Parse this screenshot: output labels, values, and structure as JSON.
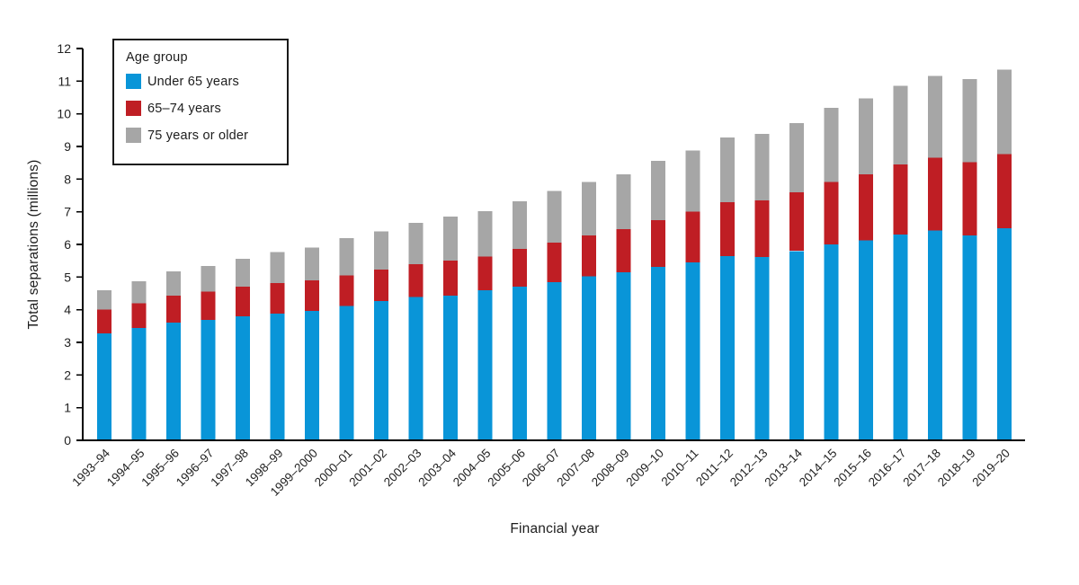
{
  "chart_data": {
    "type": "bar",
    "stacked": true,
    "xlabel": "Financial year",
    "ylabel": "Total separations (millions)",
    "ylim": [
      0,
      12
    ],
    "ytick_step": 1,
    "grid": false,
    "legend_position": "top-left-inside",
    "legend_title": "Age group",
    "categories": [
      "1993–94",
      "1994–95",
      "1995–96",
      "1996–97",
      "1997–98",
      "1998–99",
      "1999–2000",
      "2000–01",
      "2001–02",
      "2002–03",
      "2003–04",
      "2004–05",
      "2005–06",
      "2006–07",
      "2007–08",
      "2008–09",
      "2009–10",
      "2010–11",
      "2011–12",
      "2012–13",
      "2013–14",
      "2014–15",
      "2015–16",
      "2016–17",
      "2017–18",
      "2018–19",
      "2019–20"
    ],
    "series": [
      {
        "name": "Under 65 years",
        "color": "#0995d8",
        "values": [
          3.28,
          3.44,
          3.61,
          3.69,
          3.8,
          3.88,
          3.96,
          4.11,
          4.27,
          4.39,
          4.43,
          4.59,
          4.7,
          4.85,
          5.02,
          5.14,
          5.31,
          5.45,
          5.64,
          5.61,
          5.8,
          6.0,
          6.13,
          6.31,
          6.43,
          6.27,
          6.49
        ]
      },
      {
        "name": "65–74 years",
        "color": "#bf1e24",
        "values": [
          0.72,
          0.76,
          0.82,
          0.87,
          0.9,
          0.94,
          0.94,
          0.94,
          0.96,
          1.0,
          1.08,
          1.04,
          1.16,
          1.21,
          1.25,
          1.33,
          1.44,
          1.55,
          1.66,
          1.74,
          1.79,
          1.91,
          2.02,
          2.14,
          2.22,
          2.25,
          2.28
        ]
      },
      {
        "name": "75 years or older",
        "color": "#a6a6a6",
        "values": [
          0.6,
          0.67,
          0.74,
          0.78,
          0.86,
          0.94,
          1.01,
          1.14,
          1.17,
          1.27,
          1.35,
          1.39,
          1.46,
          1.58,
          1.64,
          1.67,
          1.81,
          1.88,
          1.97,
          2.04,
          2.13,
          2.28,
          2.32,
          2.41,
          2.51,
          2.55,
          2.59
        ]
      }
    ],
    "axis_color": "#000000",
    "text_color": "#222222"
  }
}
